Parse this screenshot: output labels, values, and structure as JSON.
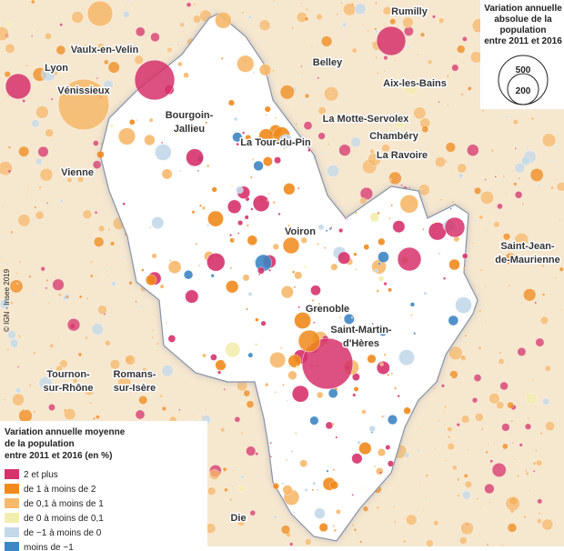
{
  "map": {
    "places": [
      {
        "lines": [
          "Rumilly"
        ]
      },
      {
        "lines": [
          "Vaulx-en-Velin"
        ]
      },
      {
        "lines": [
          "Lyon"
        ]
      },
      {
        "lines": [
          "Belley"
        ]
      },
      {
        "lines": [
          "Vénissieux"
        ]
      },
      {
        "lines": [
          "Aix-les-Bains"
        ]
      },
      {
        "lines": [
          "Bourgoin-",
          "Jallieu"
        ]
      },
      {
        "lines": [
          "La Motte-Servolex"
        ]
      },
      {
        "lines": [
          "Chambéry"
        ]
      },
      {
        "lines": [
          "La Tour-du-Pin"
        ]
      },
      {
        "lines": [
          "La Ravoire"
        ]
      },
      {
        "lines": [
          "Vienne"
        ]
      },
      {
        "lines": [
          "Voiron"
        ]
      },
      {
        "lines": [
          "Saint-Jean-",
          "de-Maurienne"
        ]
      },
      {
        "lines": [
          "Grenoble"
        ]
      },
      {
        "lines": [
          "Saint-Martin-",
          "d'Hères"
        ]
      },
      {
        "lines": [
          "Tournon-",
          "sur-Rhône"
        ]
      },
      {
        "lines": [
          "Romans-",
          "sur-Isère"
        ]
      },
      {
        "lines": [
          "Die"
        ]
      }
    ],
    "source": "© IGN - Insee 2019"
  },
  "size_legend": {
    "title": [
      "Variation annuelle",
      "absolue de la",
      "population",
      "entre 2011 et 2016"
    ],
    "values": [
      500,
      200
    ]
  },
  "color_legend": {
    "title": [
      "Variation annuelle moyenne",
      "de la population",
      "entre 2011 et 2016  (en %)"
    ],
    "items": [
      {
        "label": "2 et plus",
        "color": "#d6336c"
      },
      {
        "label": "de 1 à moins de 2",
        "color": "#f08a1c"
      },
      {
        "label": "de 0,1 à moins de 1",
        "color": "#f7b96b"
      },
      {
        "label": "de 0 à moins de 0,1",
        "color": "#f3eeae"
      },
      {
        "label": "de −1 à moins de 0",
        "color": "#c3d9ea"
      },
      {
        "label": "moins de −1",
        "color": "#3f86c4"
      }
    ]
  }
}
